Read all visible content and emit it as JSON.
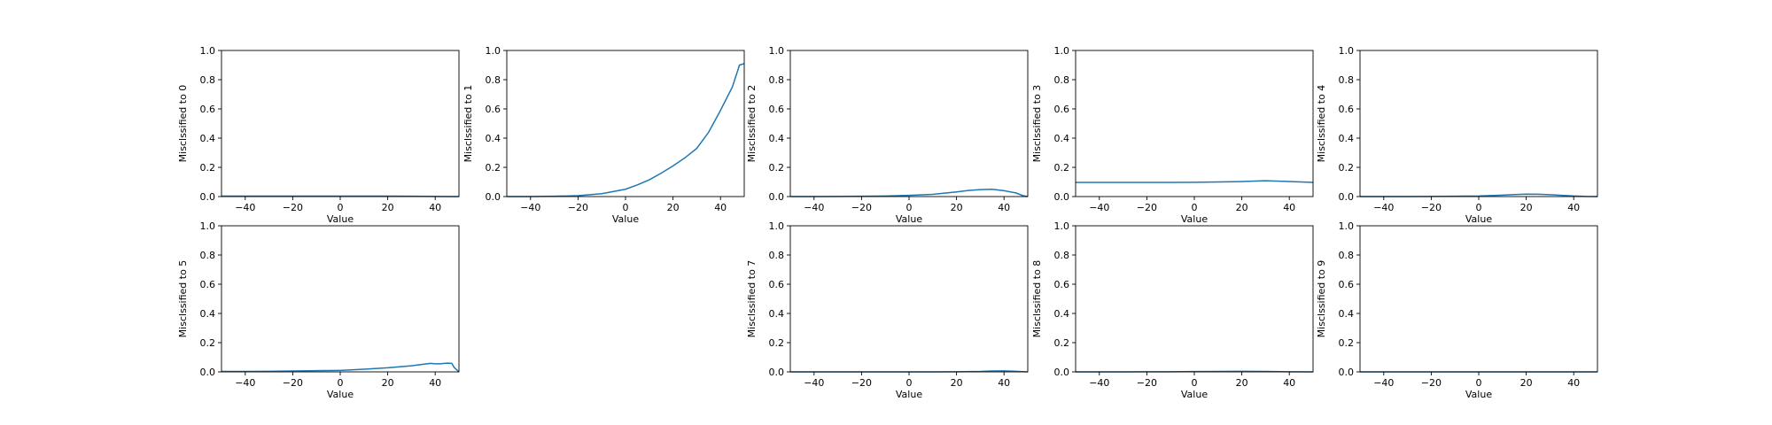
{
  "chart_data": [
    {
      "type": "line",
      "ylabel": "Misclssified to 0",
      "xlabel": "Value",
      "xlim": [
        -50,
        50
      ],
      "ylim": [
        0,
        1.0
      ],
      "xticks": [
        -40,
        -20,
        0,
        20,
        40
      ],
      "xtick_labels": [
        "−40",
        "−20",
        "0",
        "20",
        "40"
      ],
      "yticks": [
        0.0,
        0.2,
        0.4,
        0.6,
        0.8,
        1.0
      ],
      "ytick_labels": [
        "0.0",
        "0.2",
        "0.4",
        "0.6",
        "0.8",
        "1.0"
      ],
      "series": [
        {
          "x": [
            -50,
            -40,
            -30,
            -20,
            -10,
            0,
            10,
            20,
            30,
            40,
            50
          ],
          "values": [
            0.003,
            0.003,
            0.003,
            0.003,
            0.003,
            0.003,
            0.003,
            0.003,
            0.002,
            0.001,
            0.0
          ]
        }
      ]
    },
    {
      "type": "line",
      "ylabel": "Misclssified to 1",
      "xlabel": "Value",
      "xlim": [
        -50,
        50
      ],
      "ylim": [
        0,
        1.0
      ],
      "xticks": [
        -40,
        -20,
        0,
        20,
        40
      ],
      "xtick_labels": [
        "−40",
        "−20",
        "0",
        "20",
        "40"
      ],
      "yticks": [
        0.0,
        0.2,
        0.4,
        0.6,
        0.8,
        1.0
      ],
      "ytick_labels": [
        "0.0",
        "0.2",
        "0.4",
        "0.6",
        "0.8",
        "1.0"
      ],
      "series": [
        {
          "x": [
            -50,
            -40,
            -30,
            -20,
            -10,
            0,
            5,
            10,
            15,
            20,
            25,
            30,
            35,
            40,
            45,
            48,
            50
          ],
          "values": [
            0.0,
            0.0,
            0.002,
            0.006,
            0.02,
            0.05,
            0.08,
            0.115,
            0.16,
            0.21,
            0.265,
            0.33,
            0.44,
            0.59,
            0.75,
            0.9,
            0.91
          ]
        }
      ]
    },
    {
      "type": "line",
      "ylabel": "Misclssified to 2",
      "xlabel": "Value",
      "xlim": [
        -50,
        50
      ],
      "ylim": [
        0,
        1.0
      ],
      "xticks": [
        -40,
        -20,
        0,
        20,
        40
      ],
      "xtick_labels": [
        "−40",
        "−20",
        "0",
        "20",
        "40"
      ],
      "yticks": [
        0.0,
        0.2,
        0.4,
        0.6,
        0.8,
        1.0
      ],
      "ytick_labels": [
        "0.0",
        "0.2",
        "0.4",
        "0.6",
        "0.8",
        "1.0"
      ],
      "series": [
        {
          "x": [
            -50,
            -40,
            -30,
            -20,
            -10,
            0,
            10,
            20,
            25,
            30,
            35,
            40,
            45,
            48,
            50
          ],
          "values": [
            0.0,
            0.0,
            0.001,
            0.002,
            0.004,
            0.008,
            0.015,
            0.032,
            0.042,
            0.048,
            0.05,
            0.04,
            0.025,
            0.006,
            0.0
          ]
        }
      ]
    },
    {
      "type": "line",
      "ylabel": "Misclssified to 3",
      "xlabel": "Value",
      "xlim": [
        -50,
        50
      ],
      "ylim": [
        0,
        1.0
      ],
      "xticks": [
        -40,
        -20,
        0,
        20,
        40
      ],
      "xtick_labels": [
        "−40",
        "−20",
        "0",
        "20",
        "40"
      ],
      "yticks": [
        0.0,
        0.2,
        0.4,
        0.6,
        0.8,
        1.0
      ],
      "ytick_labels": [
        "0.0",
        "0.2",
        "0.4",
        "0.6",
        "0.8",
        "1.0"
      ],
      "series": [
        {
          "x": [
            -50,
            -40,
            -30,
            -20,
            -10,
            0,
            10,
            20,
            30,
            40,
            50
          ],
          "values": [
            0.097,
            0.097,
            0.097,
            0.097,
            0.097,
            0.098,
            0.1,
            0.103,
            0.108,
            0.103,
            0.097
          ]
        }
      ]
    },
    {
      "type": "line",
      "ylabel": "Misclssified to 4",
      "xlabel": "Value",
      "xlim": [
        -50,
        50
      ],
      "ylim": [
        0,
        1.0
      ],
      "xticks": [
        -40,
        -20,
        0,
        20,
        40
      ],
      "xtick_labels": [
        "−40",
        "−20",
        "0",
        "20",
        "40"
      ],
      "yticks": [
        0.0,
        0.2,
        0.4,
        0.6,
        0.8,
        1.0
      ],
      "ytick_labels": [
        "0.0",
        "0.2",
        "0.4",
        "0.6",
        "0.8",
        "1.0"
      ],
      "series": [
        {
          "x": [
            -50,
            -40,
            -30,
            -20,
            -10,
            0,
            10,
            15,
            20,
            25,
            30,
            35,
            40,
            45,
            50
          ],
          "values": [
            0.0,
            0.0,
            0.0,
            0.001,
            0.002,
            0.004,
            0.01,
            0.014,
            0.017,
            0.016,
            0.013,
            0.008,
            0.004,
            0.001,
            0.0
          ]
        }
      ]
    },
    {
      "type": "line",
      "ylabel": "Misclssified to 5",
      "xlabel": "Value",
      "xlim": [
        -50,
        50
      ],
      "ylim": [
        0,
        1.0
      ],
      "xticks": [
        -40,
        -20,
        0,
        20,
        40
      ],
      "xtick_labels": [
        "−40",
        "−20",
        "0",
        "20",
        "40"
      ],
      "yticks": [
        0.0,
        0.2,
        0.4,
        0.6,
        0.8,
        1.0
      ],
      "ytick_labels": [
        "0.0",
        "0.2",
        "0.4",
        "0.6",
        "0.8",
        "1.0"
      ],
      "series": [
        {
          "x": [
            -50,
            -40,
            -30,
            -20,
            -10,
            0,
            10,
            20,
            30,
            35,
            38,
            40,
            42,
            45,
            47,
            48,
            50
          ],
          "values": [
            0.003,
            0.003,
            0.004,
            0.006,
            0.008,
            0.01,
            0.018,
            0.028,
            0.042,
            0.052,
            0.058,
            0.055,
            0.055,
            0.06,
            0.058,
            0.03,
            0.0
          ]
        }
      ]
    },
    {
      "type": "line",
      "ylabel": "Misclssified to 7",
      "xlabel": "Value",
      "xlim": [
        -50,
        50
      ],
      "ylim": [
        0,
        1.0
      ],
      "xticks": [
        -40,
        -20,
        0,
        20,
        40
      ],
      "xtick_labels": [
        "−40",
        "−20",
        "0",
        "20",
        "40"
      ],
      "yticks": [
        0.0,
        0.2,
        0.4,
        0.6,
        0.8,
        1.0
      ],
      "ytick_labels": [
        "0.0",
        "0.2",
        "0.4",
        "0.6",
        "0.8",
        "1.0"
      ],
      "series": [
        {
          "x": [
            -50,
            -40,
            -30,
            -20,
            -10,
            0,
            10,
            20,
            30,
            35,
            40,
            45,
            50
          ],
          "values": [
            0.0,
            0.0,
            0.0,
            0.0,
            0.0,
            0.0,
            0.0,
            0.001,
            0.003,
            0.006,
            0.007,
            0.004,
            0.0
          ]
        }
      ]
    },
    {
      "type": "line",
      "ylabel": "Misclssified to 8",
      "xlabel": "Value",
      "xlim": [
        -50,
        50
      ],
      "ylim": [
        0,
        1.0
      ],
      "xticks": [
        -40,
        -20,
        0,
        20,
        40
      ],
      "xtick_labels": [
        "−40",
        "−20",
        "0",
        "20",
        "40"
      ],
      "yticks": [
        0.0,
        0.2,
        0.4,
        0.6,
        0.8,
        1.0
      ],
      "ytick_labels": [
        "0.0",
        "0.2",
        "0.4",
        "0.6",
        "0.8",
        "1.0"
      ],
      "series": [
        {
          "x": [
            -50,
            -40,
            -30,
            -20,
            -10,
            0,
            10,
            20,
            30,
            40,
            50
          ],
          "values": [
            0.0,
            0.0,
            0.0,
            0.001,
            0.001,
            0.002,
            0.003,
            0.004,
            0.003,
            0.001,
            0.0
          ]
        }
      ]
    },
    {
      "type": "line",
      "ylabel": "Misclssified to 9",
      "xlabel": "Value",
      "xlim": [
        -50,
        50
      ],
      "ylim": [
        0,
        1.0
      ],
      "xticks": [
        -40,
        -20,
        0,
        20,
        40
      ],
      "xtick_labels": [
        "−40",
        "−20",
        "0",
        "20",
        "40"
      ],
      "yticks": [
        0.0,
        0.2,
        0.4,
        0.6,
        0.8,
        1.0
      ],
      "ytick_labels": [
        "0.0",
        "0.2",
        "0.4",
        "0.6",
        "0.8",
        "1.0"
      ],
      "series": [
        {
          "x": [
            -50,
            -40,
            -30,
            -20,
            -10,
            0,
            10,
            20,
            30,
            40,
            50
          ],
          "values": [
            0.0,
            0.0,
            0.0,
            0.0,
            0.0,
            0.0,
            0.0,
            0.0,
            0.0,
            0.0,
            0.0
          ]
        }
      ]
    }
  ],
  "colors": {
    "line": "#1f77b4",
    "axes": "#000000",
    "background": "#ffffff"
  }
}
